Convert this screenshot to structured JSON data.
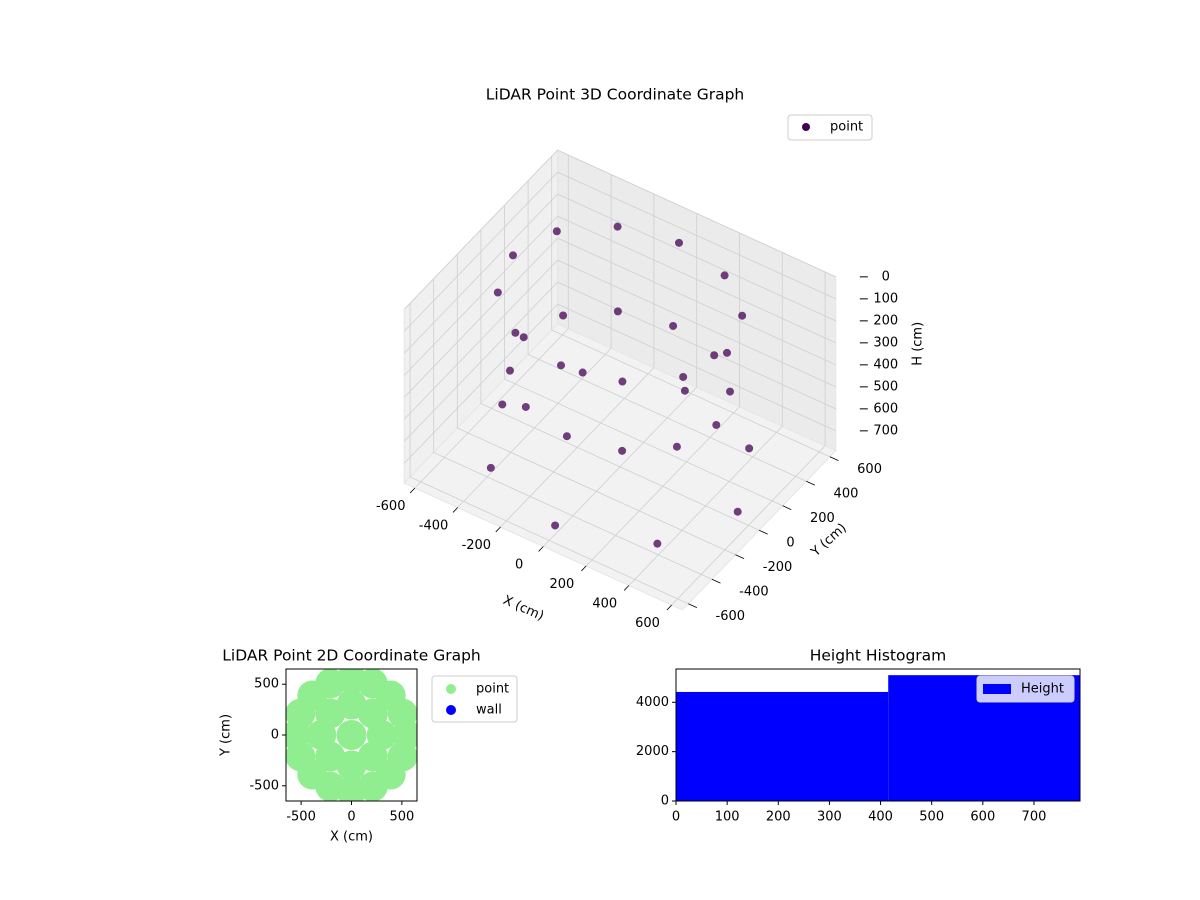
{
  "chart_data": [
    {
      "type": "scatter3d",
      "title": "LiDAR Point 3D Coordinate Graph",
      "xlabel": "X (cm)",
      "ylabel": "Y (cm)",
      "zlabel": "H (cm)",
      "xlim": [
        -650,
        650
      ],
      "ylim": [
        -650,
        650
      ],
      "zlim": [
        0,
        790
      ],
      "zinvert": true,
      "xticks": [
        -600,
        -400,
        -200,
        0,
        200,
        400,
        600
      ],
      "yticks": [
        -600,
        -400,
        -200,
        0,
        200,
        400,
        600
      ],
      "zticks": [
        0,
        100,
        200,
        300,
        400,
        500,
        600,
        700
      ],
      "legend": "upper right",
      "grid": true,
      "series": [
        {
          "name": "point",
          "color": "#440154",
          "x": [
            500,
            433,
            250,
            0,
            -250,
            -433,
            -500,
            -433,
            -250,
            0,
            250,
            433,
            450,
            390,
            225,
            0,
            -225,
            -390,
            -450,
            -390,
            -225,
            0,
            225,
            390,
            550,
            389,
            0,
            -389,
            -550,
            -389,
            0,
            389
          ],
          "y": [
            0,
            250,
            433,
            500,
            433,
            250,
            0,
            -250,
            -433,
            -500,
            -433,
            -250,
            0,
            225,
            390,
            450,
            390,
            225,
            0,
            -225,
            -390,
            -450,
            -390,
            -225,
            0,
            389,
            550,
            389,
            0,
            -389,
            -550,
            -389
          ],
          "z": [
            50,
            50,
            50,
            50,
            50,
            50,
            50,
            50,
            50,
            50,
            50,
            50,
            400,
            400,
            400,
            400,
            400,
            400,
            400,
            400,
            400,
            400,
            400,
            400,
            750,
            750,
            750,
            750,
            750,
            750,
            750,
            750
          ]
        }
      ]
    },
    {
      "type": "scatter",
      "title": "LiDAR Point 2D Coordinate Graph",
      "xlabel": "X (cm)",
      "ylabel": "Y (cm)",
      "xlim": [
        -650,
        650
      ],
      "ylim": [
        -650,
        650
      ],
      "xticks": [
        -500,
        0,
        500
      ],
      "yticks": [
        -500,
        0,
        500
      ],
      "legend": "outside upper right",
      "series": [
        {
          "name": "point",
          "color": "#90ee90",
          "x": [
            0,
            300,
            -300,
            0,
            0,
            212,
            -212,
            212,
            -212,
            550,
            -550,
            0,
            0,
            389,
            -389,
            389,
            -389,
            508,
            -508,
            508,
            -508,
            210,
            -210,
            210,
            -210
          ],
          "y": [
            0,
            0,
            0,
            300,
            -300,
            212,
            212,
            -212,
            -212,
            0,
            0,
            550,
            -550,
            389,
            389,
            -389,
            -389,
            210,
            210,
            -210,
            -210,
            508,
            508,
            -508,
            -508
          ]
        },
        {
          "name": "wall",
          "color": "#0000ff",
          "x": [],
          "y": []
        }
      ]
    },
    {
      "type": "histogram",
      "title": "Height Histogram",
      "name": "Height",
      "color": "#0000ff",
      "bins": [
        0,
        415,
        790
      ],
      "values": [
        4420,
        5100
      ],
      "xlim": [
        0,
        790
      ],
      "ylim": [
        0,
        5350
      ],
      "xticks": [
        0,
        100,
        200,
        300,
        400,
        500,
        600,
        700
      ],
      "yticks": [
        0,
        2000,
        4000
      ],
      "legend": "upper right"
    }
  ]
}
